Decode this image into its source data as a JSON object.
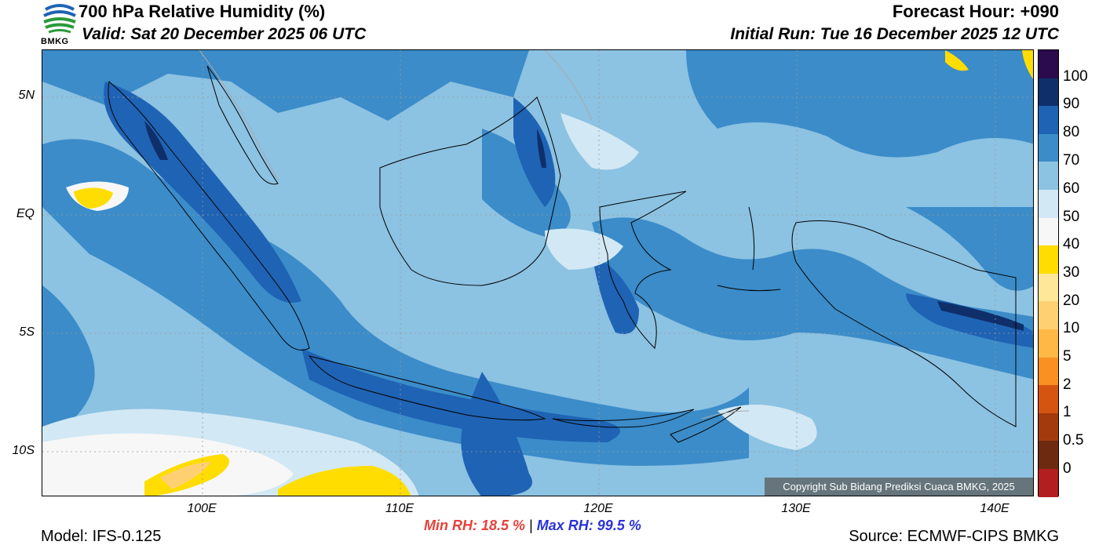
{
  "header": {
    "title": "700 hPa Relative Humidity (%)",
    "valid": "Valid: Sat 20 December 2025 06 UTC",
    "forecast_hour": "Forecast Hour: +090",
    "initial_run": "Initial Run: Tue 16 December 2025 12 UTC",
    "logo_text": "BMKG"
  },
  "map": {
    "lat_labels": [
      "5N",
      "EQ",
      "5S",
      "10S"
    ],
    "lon_labels": [
      "100E",
      "110E",
      "120E",
      "130E",
      "140E"
    ],
    "copyright": "Copyright Sub Bidang Prediksi Cuaca BMKG, 2025"
  },
  "colorbar": {
    "labels": [
      "100",
      "90",
      "80",
      "70",
      "60",
      "50",
      "40",
      "30",
      "20",
      "10",
      "5",
      "2",
      "1",
      "0.5",
      "0"
    ],
    "colors": [
      "#2c0a4e",
      "#0f2f6a",
      "#1f63b4",
      "#3b8cc9",
      "#8cc2e2",
      "#d2e8f4",
      "#f7f7f7",
      "#ffdd00",
      "#ffe79a",
      "#ffd072",
      "#ffb845",
      "#f9901f",
      "#d5540f",
      "#a33a0e",
      "#6e2a10",
      "#b31e1e",
      "#e84032"
    ]
  },
  "stats": {
    "min_label": "Min RH:",
    "min_value": "18.5 %",
    "separator": "|",
    "max_label": "Max RH:",
    "max_value": "99.5 %"
  },
  "footer": {
    "model": "Model: IFS-0.125",
    "source": "Source: ECMWF-CIPS BMKG"
  }
}
